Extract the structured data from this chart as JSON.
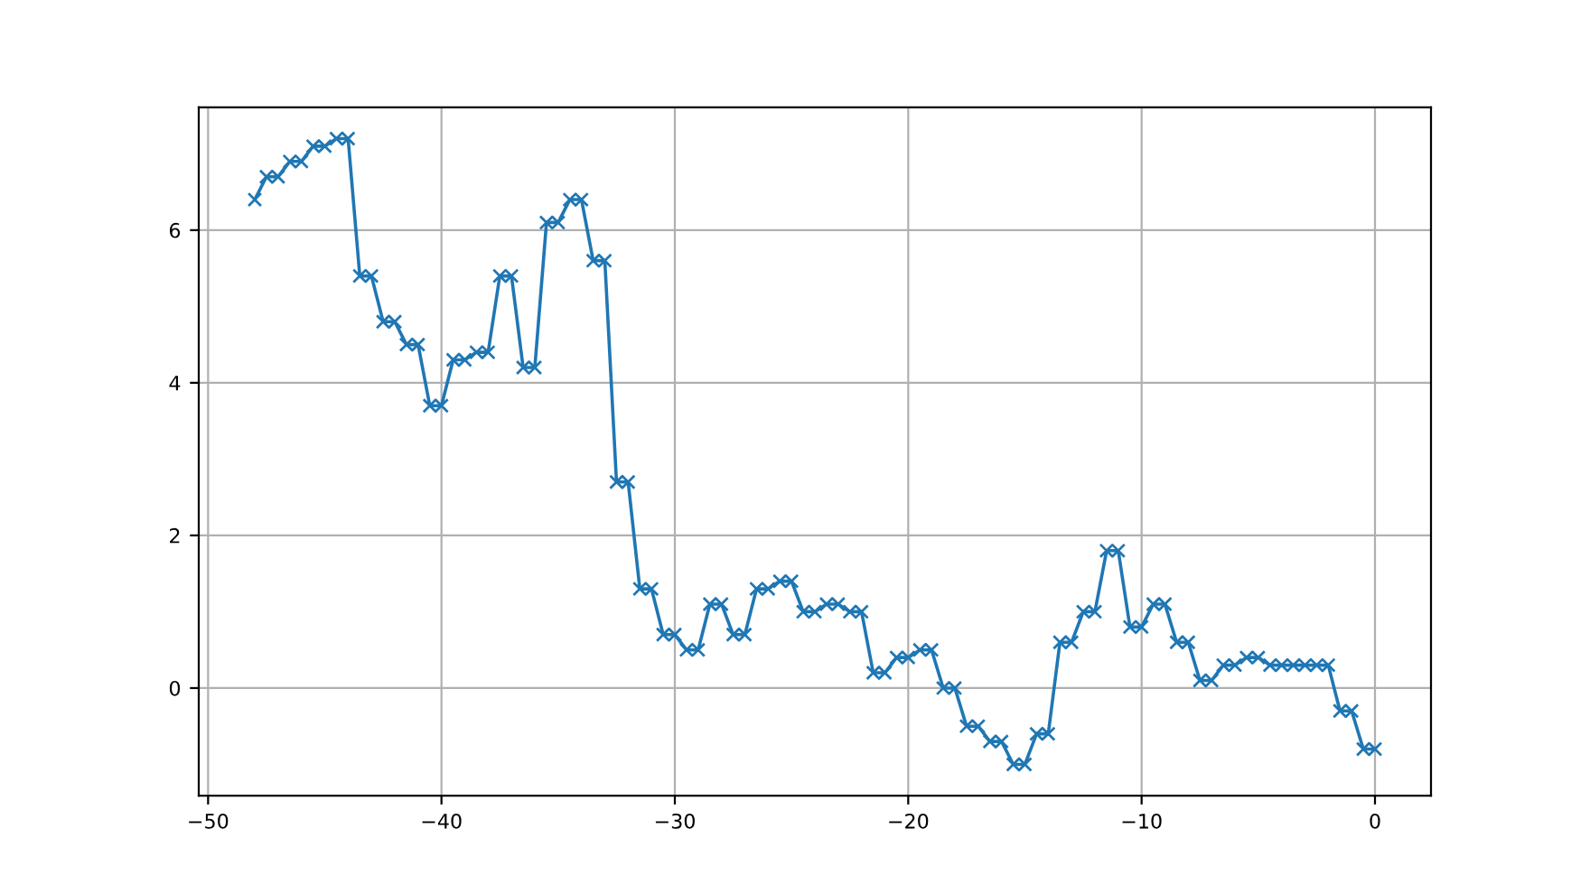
{
  "chart_data": {
    "type": "line",
    "marker": "cross",
    "line_style": "solid",
    "grid": true,
    "x": [
      -48,
      -47.5,
      -47,
      -46.5,
      -46,
      -45.5,
      -45,
      -44.5,
      -44,
      -43.5,
      -43,
      -42.5,
      -42,
      -41.5,
      -41,
      -40.5,
      -40,
      -39.5,
      -39,
      -38.5,
      -38,
      -37.5,
      -37,
      -36.5,
      -36,
      -35.5,
      -35,
      -34.5,
      -34,
      -33.5,
      -33,
      -32.5,
      -32,
      -31.5,
      -31,
      -30.5,
      -30,
      -29.5,
      -29,
      -28.5,
      -28,
      -27.5,
      -27,
      -26.5,
      -26,
      -25.5,
      -25,
      -24.5,
      -24,
      -23.5,
      -23,
      -22.5,
      -22,
      -21.5,
      -21,
      -20.5,
      -20,
      -19.5,
      -19,
      -18.5,
      -18,
      -17.5,
      -17,
      -16.5,
      -16,
      -15.5,
      -15,
      -14.5,
      -14,
      -13.5,
      -13,
      -12.5,
      -12,
      -11.5,
      -11,
      -10.5,
      -10,
      -9.5,
      -9,
      -8.5,
      -8,
      -7.5,
      -7,
      -6.5,
      -6,
      -5.5,
      -5,
      -4.5,
      -4,
      -3.5,
      -3,
      -2.5,
      -2,
      -1.5,
      -1,
      -0.5,
      0
    ],
    "series": [
      {
        "color": "#1f77b4",
        "values": [
          6.4,
          6.7,
          6.7,
          6.9,
          6.9,
          7.1,
          7.1,
          7.2,
          7.2,
          5.4,
          5.4,
          4.8,
          4.8,
          4.5,
          4.5,
          3.7,
          3.7,
          4.3,
          4.3,
          4.4,
          4.4,
          5.4,
          5.4,
          4.2,
          4.2,
          6.1,
          6.1,
          6.4,
          6.4,
          5.6,
          5.6,
          2.7,
          2.7,
          1.3,
          1.3,
          0.7,
          0.7,
          0.5,
          0.5,
          1.1,
          1.1,
          0.7,
          0.7,
          1.3,
          1.3,
          1.4,
          1.4,
          1.0,
          1.0,
          1.1,
          1.1,
          1.0,
          1.0,
          0.2,
          0.2,
          0.4,
          0.4,
          0.5,
          0.5,
          0.0,
          0.0,
          -0.5,
          -0.5,
          -0.7,
          -0.7,
          -1.0,
          -1.0,
          -0.6,
          -0.6,
          0.6,
          0.6,
          1.0,
          1.0,
          1.8,
          1.8,
          0.8,
          0.8,
          1.1,
          1.1,
          0.6,
          0.6,
          0.1,
          0.1,
          0.3,
          0.3,
          0.4,
          0.4,
          0.3,
          0.3,
          0.3,
          0.3,
          0.3,
          0.3,
          -0.3,
          -0.3,
          -0.8,
          -0.8
        ]
      }
    ],
    "xlim": [
      -50.4,
      2.4
    ],
    "ylim": [
      -1.41,
      7.61
    ],
    "xticks": [
      {
        "value": -50,
        "label": "−50"
      },
      {
        "value": -40,
        "label": "−40"
      },
      {
        "value": -30,
        "label": "−30"
      },
      {
        "value": -20,
        "label": "−20"
      },
      {
        "value": -10,
        "label": "−10"
      },
      0
    ],
    "yticks": [
      0,
      2,
      4,
      6
    ]
  }
}
